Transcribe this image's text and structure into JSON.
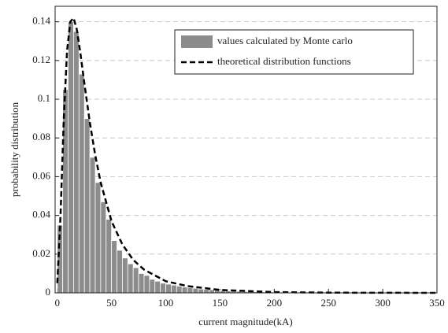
{
  "chart_data": {
    "type": "histogram",
    "xlabel": "current magnitude(kA)",
    "ylabel": "probability distribution",
    "xlim": [
      -2,
      350
    ],
    "ylim": [
      0,
      0.148
    ],
    "xticks": [
      0,
      50,
      100,
      150,
      200,
      250,
      300,
      350
    ],
    "yticks": [
      0,
      0.02,
      0.04,
      0.06,
      0.08,
      0.1,
      0.12,
      0.14
    ],
    "grid": true,
    "legend": "upper right",
    "series": [
      {
        "type": "histogram",
        "name": "values calculated by Monte carlo",
        "color": "#8c8c8c",
        "bins": [
          0,
          5,
          10,
          15,
          20,
          25,
          30,
          35,
          40,
          45,
          50,
          55,
          60,
          65,
          70,
          75,
          80,
          85,
          90,
          95,
          100,
          105,
          110,
          115,
          120,
          125,
          130,
          135,
          140,
          145,
          150,
          155,
          160,
          165,
          170,
          175,
          180,
          185,
          190,
          195,
          200,
          205,
          210,
          215,
          220,
          225,
          230,
          235,
          240,
          245,
          250
        ],
        "values": [
          0.035,
          0.105,
          0.14,
          0.135,
          0.113,
          0.09,
          0.07,
          0.057,
          0.047,
          0.038,
          0.027,
          0.022,
          0.018,
          0.015,
          0.013,
          0.01,
          0.009,
          0.007,
          0.006,
          0.005,
          0.0045,
          0.004,
          0.0035,
          0.003,
          0.0027,
          0.0024,
          0.002,
          0.0018,
          0.0016,
          0.0014,
          0.0012,
          0.001,
          0.0009,
          0.0008,
          0.0007,
          0.0006,
          0.0005,
          0.0005,
          0.0004,
          0.0004,
          0.0003,
          0.0003,
          0.0002,
          0.0002,
          0.0002,
          0.0001,
          0.0001,
          0.0001,
          0.0001,
          0.0001
        ]
      },
      {
        "type": "line",
        "name": "theoretical distribution functions",
        "color": "#000000",
        "x": [
          0,
          3,
          6,
          9,
          12,
          15,
          18,
          21,
          25,
          30,
          35,
          40,
          50,
          60,
          70,
          80,
          100,
          120,
          150,
          200,
          250,
          300,
          350
        ],
        "values": [
          0.005,
          0.04,
          0.09,
          0.125,
          0.14,
          0.142,
          0.136,
          0.125,
          0.108,
          0.088,
          0.071,
          0.057,
          0.037,
          0.025,
          0.017,
          0.012,
          0.006,
          0.0035,
          0.0015,
          0.0004,
          0.0001,
          4e-05,
          1e-05
        ]
      }
    ]
  }
}
